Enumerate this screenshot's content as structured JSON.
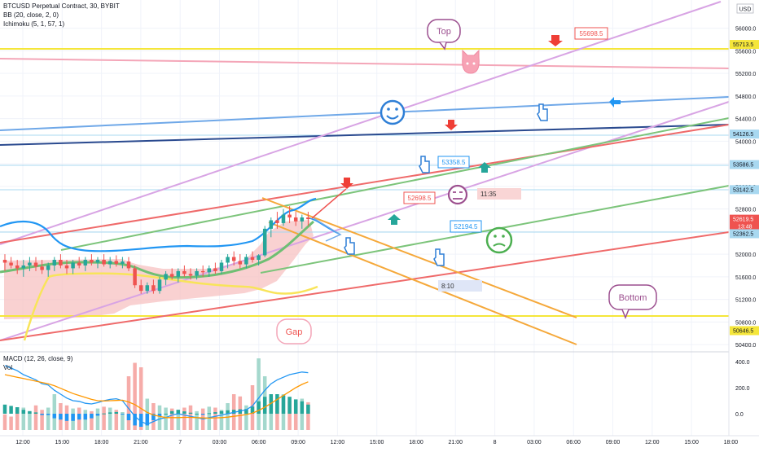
{
  "header": {
    "symbol_line": "BTCUSD Perpetual Contract, 30, BYBIT",
    "bb_line": "BB (20, close, 2, 0)",
    "ichimoku_line": "Ichimoku (5, 1, 57, 1)",
    "macd_line": "MACD (12, 26, close, 9)",
    "vol_line": "Vol",
    "currency": "USD"
  },
  "colors": {
    "candle_up": "#26a69a",
    "candle_down": "#ef5350",
    "bb_basis": "#2196f3",
    "ichimoku_cloud": "#f7c2c2",
    "highlight_line": "#f5e63a",
    "macd_line": "#2196f3",
    "signal_line": "#ff9800"
  },
  "chart_data": [
    {
      "type": "candlestick",
      "title": "BTCUSD Perpetual Contract, 30, BYBIT",
      "indicators": [
        "BB (20, close, 2, 0)",
        "Ichimoku (5, 1, 57, 1)"
      ],
      "x_tick_labels": [
        "12:00",
        "15:00",
        "18:00",
        "21:00",
        "7",
        "03:00",
        "06:00",
        "09:00",
        "12:00",
        "15:00",
        "18:00",
        "21:00",
        "8",
        "03:00",
        "06:00",
        "09:00",
        "12:00",
        "15:00",
        "18:00"
      ],
      "y_tick_labels": [
        "56000.0",
        "55600.0",
        "55200.0",
        "54800.0",
        "54400.0",
        "54000.0",
        "53600.0",
        "53200.0",
        "52800.0",
        "52400.0",
        "52000.0",
        "51600.0",
        "51200.0",
        "50800.0",
        "50400.0"
      ],
      "ylim": [
        50300,
        56500
      ],
      "price_labels": [
        "55713.5",
        "54126.5",
        "53586.5",
        "53142.5",
        "52619.5",
        "52362.5",
        "50646.5"
      ],
      "countdown": "13:48",
      "annotations": [
        "Top",
        "Bottom",
        "Gap",
        "55698.5",
        "53358.5",
        "52698.5",
        "52194.5",
        "11:35",
        "8:10"
      ],
      "candles": [
        {
          "t": 0,
          "o": 51900,
          "h": 52000,
          "l": 51700,
          "c": 51850
        },
        {
          "t": 1,
          "o": 51850,
          "h": 51950,
          "l": 51750,
          "c": 51800
        },
        {
          "t": 2,
          "o": 51800,
          "h": 51900,
          "l": 51650,
          "c": 51750
        },
        {
          "t": 3,
          "o": 51750,
          "h": 51900,
          "l": 51600,
          "c": 51800
        },
        {
          "t": 4,
          "o": 51800,
          "h": 51950,
          "l": 51700,
          "c": 51850
        },
        {
          "t": 5,
          "o": 51850,
          "h": 51950,
          "l": 51700,
          "c": 51780
        },
        {
          "t": 6,
          "o": 51780,
          "h": 51900,
          "l": 51650,
          "c": 51720
        },
        {
          "t": 7,
          "o": 51720,
          "h": 51850,
          "l": 51600,
          "c": 51800
        },
        {
          "t": 8,
          "o": 51800,
          "h": 51950,
          "l": 51700,
          "c": 51900
        },
        {
          "t": 9,
          "o": 51900,
          "h": 52000,
          "l": 51750,
          "c": 51800
        },
        {
          "t": 10,
          "o": 51800,
          "h": 51900,
          "l": 51650,
          "c": 51750
        },
        {
          "t": 11,
          "o": 51750,
          "h": 51900,
          "l": 51650,
          "c": 51850
        },
        {
          "t": 12,
          "o": 51850,
          "h": 51950,
          "l": 51750,
          "c": 51800
        },
        {
          "t": 13,
          "o": 51800,
          "h": 51950,
          "l": 51700,
          "c": 51900
        },
        {
          "t": 14,
          "o": 51900,
          "h": 52000,
          "l": 51800,
          "c": 51850
        },
        {
          "t": 15,
          "o": 51850,
          "h": 51950,
          "l": 51750,
          "c": 51900
        },
        {
          "t": 16,
          "o": 51900,
          "h": 52000,
          "l": 51780,
          "c": 51820
        },
        {
          "t": 17,
          "o": 51820,
          "h": 51950,
          "l": 51750,
          "c": 51880
        },
        {
          "t": 18,
          "o": 51880,
          "h": 51980,
          "l": 51780,
          "c": 51830
        },
        {
          "t": 19,
          "o": 51830,
          "h": 51950,
          "l": 51750,
          "c": 51870
        },
        {
          "t": 20,
          "o": 51870,
          "h": 51950,
          "l": 51700,
          "c": 51750
        },
        {
          "t": 21,
          "o": 51750,
          "h": 51800,
          "l": 51400,
          "c": 51450
        },
        {
          "t": 22,
          "o": 51450,
          "h": 51550,
          "l": 51300,
          "c": 51350
        },
        {
          "t": 23,
          "o": 51350,
          "h": 51500,
          "l": 51300,
          "c": 51450
        },
        {
          "t": 24,
          "o": 51450,
          "h": 51550,
          "l": 51300,
          "c": 51350
        },
        {
          "t": 25,
          "o": 51350,
          "h": 51600,
          "l": 51300,
          "c": 51550
        },
        {
          "t": 26,
          "o": 51550,
          "h": 51700,
          "l": 51450,
          "c": 51650
        },
        {
          "t": 27,
          "o": 51650,
          "h": 51750,
          "l": 51550,
          "c": 51600
        },
        {
          "t": 28,
          "o": 51600,
          "h": 51750,
          "l": 51500,
          "c": 51700
        },
        {
          "t": 29,
          "o": 51700,
          "h": 51800,
          "l": 51600,
          "c": 51650
        },
        {
          "t": 30,
          "o": 51650,
          "h": 51750,
          "l": 51550,
          "c": 51620
        },
        {
          "t": 31,
          "o": 51620,
          "h": 51750,
          "l": 51550,
          "c": 51700
        },
        {
          "t": 32,
          "o": 51700,
          "h": 51800,
          "l": 51600,
          "c": 51680
        },
        {
          "t": 33,
          "o": 51680,
          "h": 51800,
          "l": 51600,
          "c": 51750
        },
        {
          "t": 34,
          "o": 51750,
          "h": 51850,
          "l": 51650,
          "c": 51700
        },
        {
          "t": 35,
          "o": 51700,
          "h": 51900,
          "l": 51650,
          "c": 51850
        },
        {
          "t": 36,
          "o": 51850,
          "h": 52000,
          "l": 51750,
          "c": 51950
        },
        {
          "t": 37,
          "o": 51950,
          "h": 52050,
          "l": 51800,
          "c": 51880
        },
        {
          "t": 38,
          "o": 51880,
          "h": 52000,
          "l": 51750,
          "c": 51820
        },
        {
          "t": 39,
          "o": 51820,
          "h": 52000,
          "l": 51750,
          "c": 51950
        },
        {
          "t": 40,
          "o": 51950,
          "h": 52050,
          "l": 51850,
          "c": 51900
        },
        {
          "t": 41,
          "o": 51900,
          "h": 52000,
          "l": 51800,
          "c": 51980
        },
        {
          "t": 42,
          "o": 51980,
          "h": 52500,
          "l": 51950,
          "c": 52450
        },
        {
          "t": 43,
          "o": 52450,
          "h": 52650,
          "l": 52300,
          "c": 52600
        },
        {
          "t": 44,
          "o": 52600,
          "h": 52750,
          "l": 52450,
          "c": 52550
        },
        {
          "t": 45,
          "o": 52550,
          "h": 52800,
          "l": 52500,
          "c": 52700
        },
        {
          "t": 46,
          "o": 52700,
          "h": 52850,
          "l": 52550,
          "c": 52650
        },
        {
          "t": 47,
          "o": 52650,
          "h": 52750,
          "l": 52500,
          "c": 52580
        },
        {
          "t": 48,
          "o": 52580,
          "h": 52700,
          "l": 52450,
          "c": 52650
        },
        {
          "t": 49,
          "o": 52650,
          "h": 52750,
          "l": 52500,
          "c": 52620
        }
      ]
    },
    {
      "type": "macd",
      "title": "MACD (12, 26, close, 9)",
      "y_tick_labels": [
        "400.0",
        "200.0",
        "0.0"
      ],
      "ylim": [
        -150,
        450
      ],
      "volume_heights": [
        35,
        30,
        45,
        50,
        40,
        55,
        45,
        50,
        80,
        60,
        55,
        48,
        50,
        45,
        42,
        48,
        52,
        50,
        45,
        40,
        120,
        150,
        140,
        70,
        60,
        55,
        50,
        48,
        45,
        50,
        55,
        42,
        48,
        52,
        50,
        45,
        60,
        80,
        75,
        55,
        100,
        160,
        120,
        75,
        70,
        80,
        65,
        60,
        70,
        62
      ],
      "macd_values": [
        370,
        350,
        330,
        300,
        280,
        260,
        230,
        220,
        180,
        150,
        120,
        100,
        95,
        80,
        75,
        85,
        100,
        110,
        115,
        100,
        40,
        -20,
        -60,
        -80,
        -60,
        -40,
        -30,
        -10,
        0,
        -10,
        -20,
        -30,
        -40,
        -30,
        -20,
        -10,
        0,
        10,
        20,
        30,
        60,
        120,
        180,
        230,
        260,
        280,
        300,
        310,
        320,
        315
      ],
      "signal_values": [
        300,
        290,
        280,
        270,
        260,
        250,
        240,
        230,
        215,
        195,
        175,
        155,
        140,
        125,
        110,
        100,
        98,
        100,
        102,
        104,
        90,
        70,
        40,
        10,
        -10,
        -20,
        -30,
        -30,
        -30,
        -28,
        -28,
        -30,
        -32,
        -34,
        -32,
        -30,
        -26,
        -20,
        -14,
        -6,
        5,
        25,
        50,
        80,
        110,
        140,
        170,
        200,
        225,
        245
      ]
    }
  ]
}
